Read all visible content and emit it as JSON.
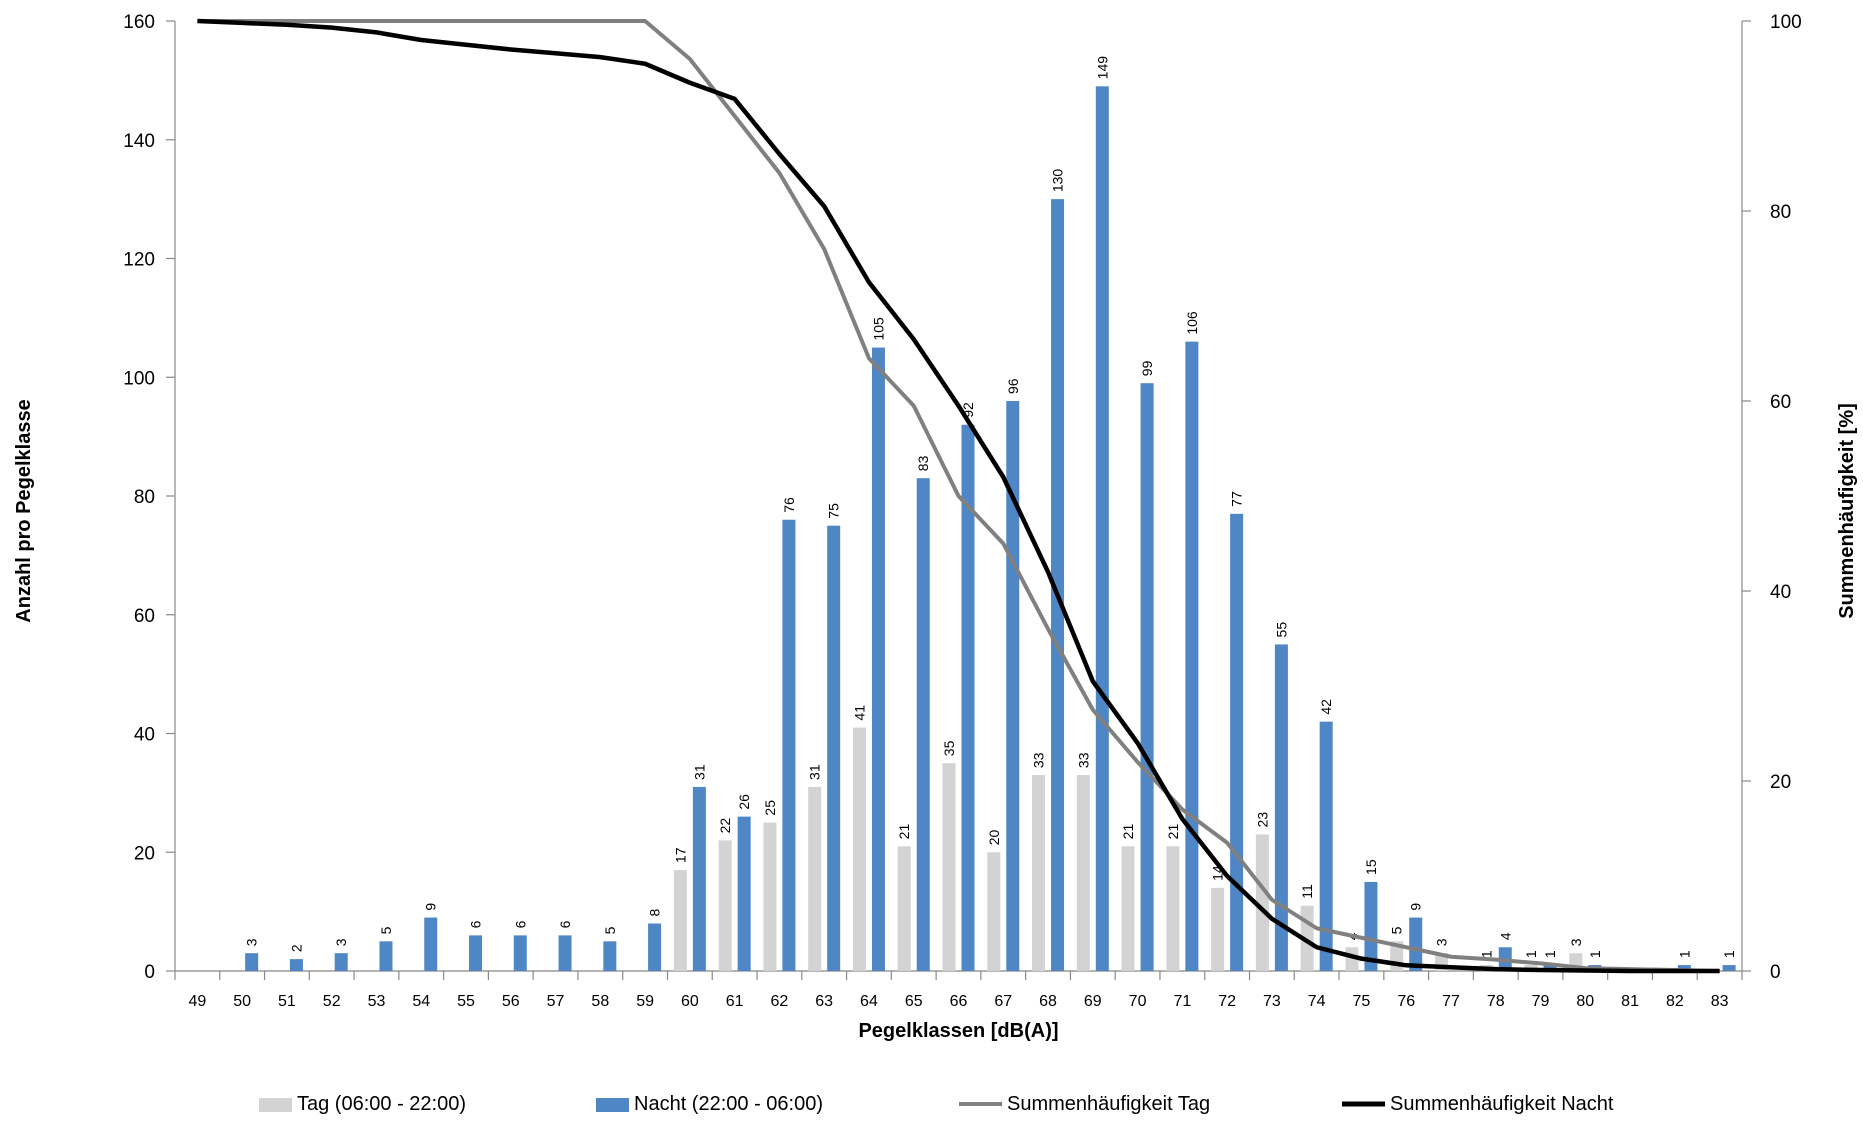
{
  "chart_data": {
    "type": "bar",
    "xlabel": "Pegelklassen [dB(A)]",
    "ylabel": "Anzahl pro Pegelklasse",
    "y2label": "Summenhäufigkeit [%]",
    "ylim": [
      0,
      160
    ],
    "y2lim": [
      0,
      100
    ],
    "yticks": [
      "0",
      "20",
      "40",
      "60",
      "80",
      "100",
      "120",
      "140",
      "160"
    ],
    "y2ticks": [
      "0",
      "20",
      "40",
      "60",
      "80",
      "100"
    ],
    "categories": [
      "49",
      "50",
      "51",
      "52",
      "53",
      "54",
      "55",
      "56",
      "57",
      "58",
      "59",
      "60",
      "61",
      "62",
      "63",
      "64",
      "65",
      "66",
      "67",
      "68",
      "69",
      "70",
      "71",
      "72",
      "73",
      "74",
      "75",
      "76",
      "77",
      "78",
      "79",
      "80",
      "81",
      "82",
      "83"
    ],
    "series": [
      {
        "name": "Tag (06:00 - 22:00)",
        "kind": "bar",
        "axis": "left",
        "color": "#d3d3d3",
        "values": [
          0,
          0,
          0,
          0,
          0,
          0,
          0,
          0,
          0,
          0,
          0,
          17,
          22,
          25,
          31,
          41,
          21,
          35,
          20,
          33,
          33,
          21,
          21,
          14,
          23,
          11,
          4,
          5,
          3,
          1,
          1,
          3,
          0,
          0,
          0
        ]
      },
      {
        "name": "Nacht (22:00 - 06:00)",
        "kind": "bar",
        "axis": "left",
        "color": "#4f86c6",
        "values": [
          0,
          3,
          2,
          3,
          5,
          9,
          6,
          6,
          6,
          5,
          8,
          31,
          26,
          76,
          75,
          105,
          83,
          92,
          96,
          130,
          149,
          99,
          106,
          77,
          55,
          42,
          15,
          9,
          0,
          4,
          1,
          1,
          0,
          1,
          1
        ]
      },
      {
        "name": "Summenhäufigkeit Tag",
        "kind": "line",
        "axis": "right",
        "color": "#808080",
        "values": [
          100,
          100,
          100,
          100,
          100,
          100,
          100,
          100,
          100,
          100,
          100,
          96,
          90,
          84,
          76,
          64.5,
          59.5,
          50,
          45,
          36,
          27.5,
          22,
          17,
          13.5,
          7.5,
          4.5,
          3.5,
          2.5,
          1.5,
          1.2,
          0.8,
          0.3,
          0.2,
          0.1,
          0
        ]
      },
      {
        "name": "Summenhäufigkeit Nacht",
        "kind": "line",
        "axis": "right",
        "color": "#000000",
        "values": [
          100,
          99.8,
          99.6,
          99.3,
          98.8,
          98,
          97.5,
          97,
          96.6,
          96.2,
          95.5,
          93.5,
          91.8,
          86,
          80.5,
          72.5,
          66.5,
          59.5,
          52,
          42,
          30.5,
          24,
          16,
          10,
          5.5,
          2.5,
          1.3,
          0.6,
          0.4,
          0.2,
          0.1,
          0.05,
          0,
          0,
          0
        ]
      }
    ],
    "legend_position": "bottom",
    "grid": false
  }
}
